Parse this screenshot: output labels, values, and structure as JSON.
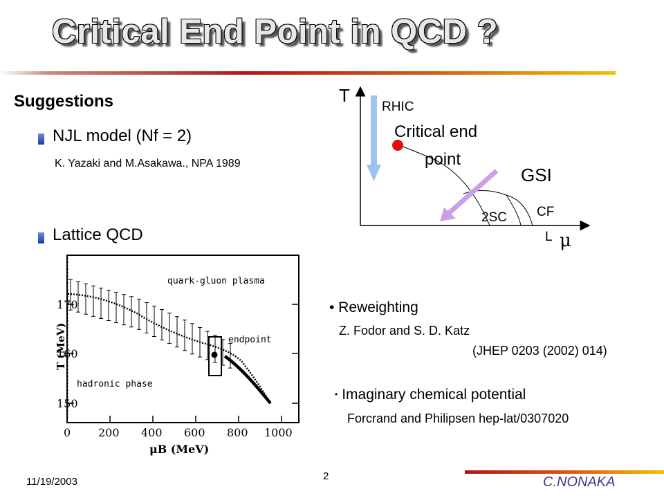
{
  "slide": {
    "title": "Critical End Point in QCD ?",
    "subtitle": "Suggestions",
    "bullet_njl": "NJL model (Nf = 2)",
    "ref_njl": "K. Yazaki and M.Asakawa., NPA 1989",
    "bullet_lattice": "Lattice QCD",
    "reweighting": "• Reweighting",
    "ref_fodor": "Z. Fodor and S. D. Katz",
    "ref_jhep": "(JHEP 0203 (2002) 014)",
    "imaginary_dot": "•",
    "imaginary": "Imaginary chemical potential",
    "ref_forcrand": "Forcrand and Philipsen hep-lat/0307020",
    "date": "11/19/2003",
    "page_number": "2",
    "author": "C.NONAKA"
  },
  "phase_diagram": {
    "axis_y": "T",
    "axis_x": "μ",
    "rhic": "RHIC",
    "critical_line1": "Critical end",
    "critical_line2": "point",
    "gsi": "GSI",
    "sc": "2SC",
    "cfl1": "CF",
    "cfl2": "L",
    "colors": {
      "rhic_arrow": "#9dc3ee",
      "gsi_arrow": "#c9a0e8",
      "critical_point": "#e01010"
    }
  },
  "lattice_plot": {
    "ylabel": "T (MeV)",
    "xlabel": "μB (MeV)",
    "label_qgp": "quark-gluon plasma",
    "label_endpoint": "endpoint",
    "label_hadronic": "hadronic phase",
    "xticks": [
      "0",
      "200",
      "400",
      "600",
      "800",
      "1000"
    ],
    "yticks": [
      "150",
      "160",
      "170"
    ]
  }
}
